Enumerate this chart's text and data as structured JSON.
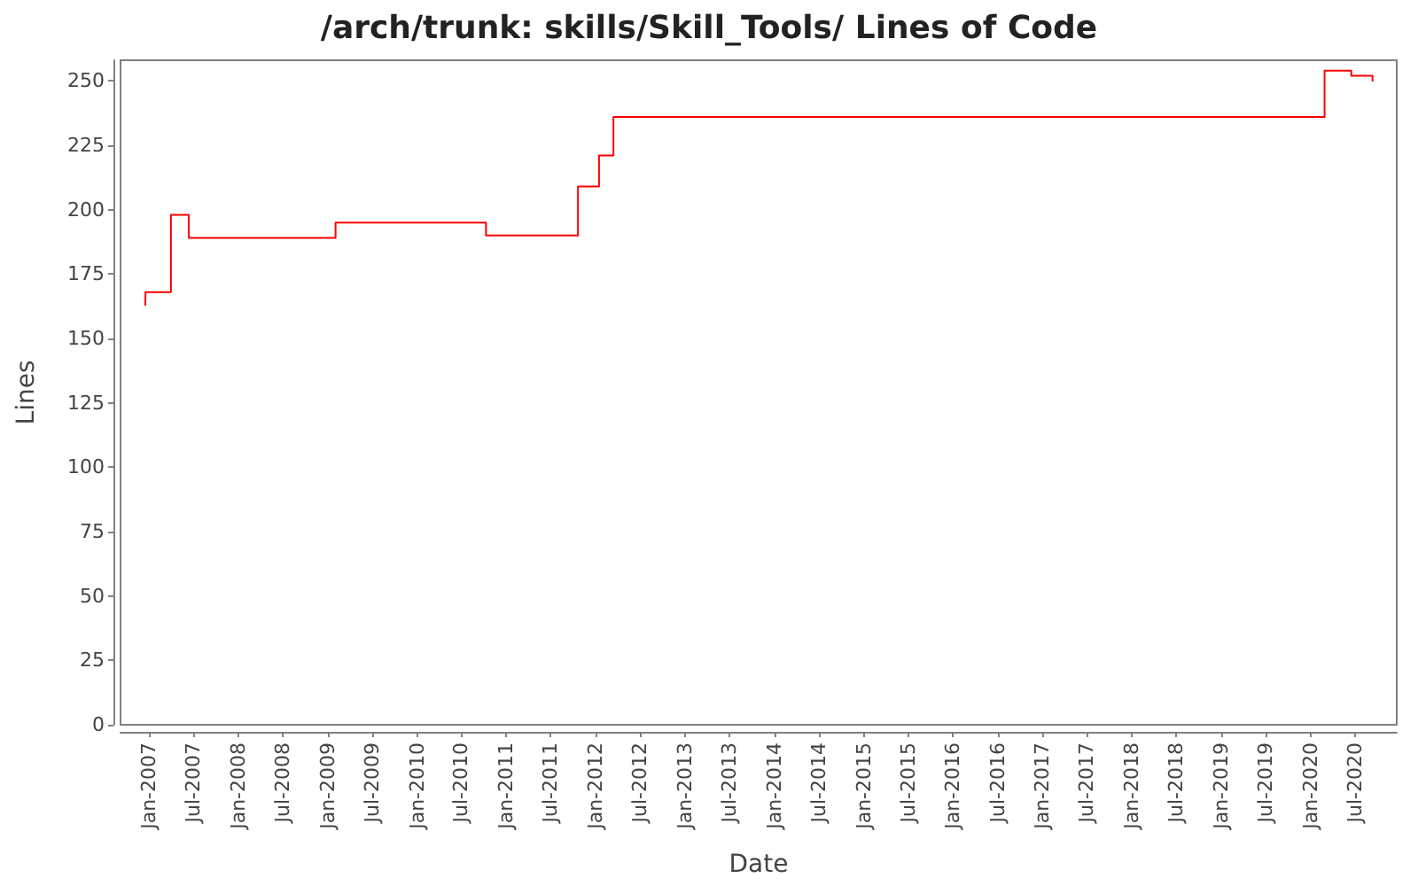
{
  "chart_data": {
    "type": "step",
    "title": "/arch/trunk: skills/Skill_Tools/ Lines of Code",
    "xlabel": "Date",
    "ylabel": "Lines",
    "x": [
      "2006-12-17",
      "2006-12-18",
      "2007-04-01",
      "2007-06-13",
      "2009-02-02",
      "2010-10-10",
      "2011-10-21",
      "2012-01-15",
      "2012-03-14",
      "2020-02-28",
      "2020-06-16",
      "2020-09-11"
    ],
    "values": [
      163,
      168,
      198,
      189,
      195,
      190,
      209,
      221,
      236,
      254,
      252,
      250
    ],
    "color": "#ff0000",
    "xlim": [
      "2006-09-07",
      "2020-12-19"
    ],
    "xticks": [
      {
        "value": "2007-01",
        "label": "Jan-2007"
      },
      {
        "value": "2007-07",
        "label": "Jul-2007"
      },
      {
        "value": "2008-01",
        "label": "Jan-2008"
      },
      {
        "value": "2008-07",
        "label": "Jul-2008"
      },
      {
        "value": "2009-01",
        "label": "Jan-2009"
      },
      {
        "value": "2009-07",
        "label": "Jul-2009"
      },
      {
        "value": "2010-01",
        "label": "Jan-2010"
      },
      {
        "value": "2010-07",
        "label": "Jul-2010"
      },
      {
        "value": "2011-01",
        "label": "Jan-2011"
      },
      {
        "value": "2011-07",
        "label": "Jul-2011"
      },
      {
        "value": "2012-01",
        "label": "Jan-2012"
      },
      {
        "value": "2012-07",
        "label": "Jul-2012"
      },
      {
        "value": "2013-01",
        "label": "Jan-2013"
      },
      {
        "value": "2013-07",
        "label": "Jul-2013"
      },
      {
        "value": "2014-01",
        "label": "Jan-2014"
      },
      {
        "value": "2014-07",
        "label": "Jul-2014"
      },
      {
        "value": "2015-01",
        "label": "Jan-2015"
      },
      {
        "value": "2015-07",
        "label": "Jul-2015"
      },
      {
        "value": "2016-01",
        "label": "Jan-2016"
      },
      {
        "value": "2016-07",
        "label": "Jul-2016"
      },
      {
        "value": "2017-01",
        "label": "Jan-2017"
      },
      {
        "value": "2017-07",
        "label": "Jul-2017"
      },
      {
        "value": "2018-01",
        "label": "Jan-2018"
      },
      {
        "value": "2018-07",
        "label": "Jul-2018"
      },
      {
        "value": "2019-01",
        "label": "Jan-2019"
      },
      {
        "value": "2019-07",
        "label": "Jul-2019"
      },
      {
        "value": "2020-01",
        "label": "Jan-2020"
      },
      {
        "value": "2020-07",
        "label": "Jul-2020"
      }
    ],
    "ylim": [
      0,
      258
    ],
    "yticks": [
      0,
      25,
      50,
      75,
      100,
      125,
      150,
      175,
      200,
      225,
      250
    ],
    "grid": false,
    "marker": "none",
    "line_style": "solid"
  }
}
